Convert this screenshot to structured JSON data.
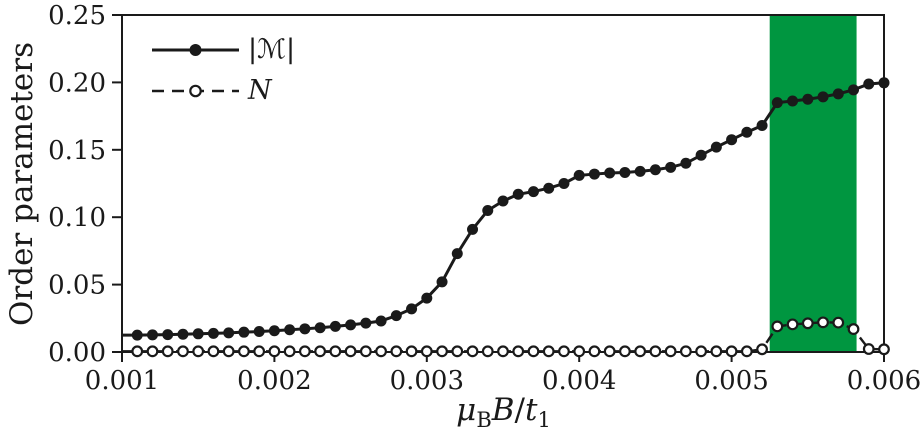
{
  "figure": {
    "background": "#ffffff",
    "ink_color": "#1a1a1a",
    "band_color": "#009640"
  },
  "labels": {
    "ylabel": "Order parameters",
    "xlabel_mu": "μ",
    "xlabel_mu_sub": "B",
    "xlabel_B": "B",
    "xlabel_slash": "/",
    "xlabel_t": "t",
    "xlabel_t_sub": "1"
  },
  "legend": {
    "items": [
      {
        "label": "|ℳ|",
        "line": "solid",
        "marker": "filled-circle"
      },
      {
        "label": "N",
        "line": "dashed",
        "marker": "open-circle"
      }
    ]
  },
  "chart_data": {
    "type": "line",
    "title": "",
    "xlabel": "mu_B B / t_1",
    "ylabel": "Order parameters",
    "xlim": [
      0.001,
      0.006
    ],
    "ylim": [
      0,
      0.25
    ],
    "grid": false,
    "legend_position": "upper-left",
    "xticks": [
      0.001,
      0.002,
      0.003,
      0.004,
      0.005,
      0.006
    ],
    "xtick_labels": [
      "0.001",
      "0.002",
      "0.003",
      "0.004",
      "0.005",
      "0.006"
    ],
    "yticks": [
      0,
      0.05,
      0.1,
      0.15,
      0.2,
      0.25
    ],
    "ytick_labels": [
      "0.00",
      "0.05",
      "0.10",
      "0.15",
      "0.20",
      "0.25"
    ],
    "highlight_band": {
      "x0": 0.00525,
      "x1": 0.00582,
      "color": "#009640"
    },
    "x": [
      0.0011,
      0.0012,
      0.0013,
      0.0014,
      0.0015,
      0.0016,
      0.0017,
      0.0018,
      0.0019,
      0.002,
      0.0021,
      0.0022,
      0.0023,
      0.0024,
      0.0025,
      0.0026,
      0.0027,
      0.0028,
      0.0029,
      0.003,
      0.0031,
      0.0032,
      0.0033,
      0.0034,
      0.0035,
      0.0036,
      0.0037,
      0.0038,
      0.0039,
      0.004,
      0.0041,
      0.0042,
      0.0043,
      0.0044,
      0.0045,
      0.0046,
      0.0047,
      0.0048,
      0.0049,
      0.005,
      0.0051,
      0.0052,
      0.0053,
      0.0054,
      0.0055,
      0.0056,
      0.0057,
      0.0058,
      0.0059,
      0.006
    ],
    "series": [
      {
        "name": "|ℳ|",
        "line": "solid",
        "marker": "filled-circle",
        "color": "#1a1a1a",
        "values": [
          0.0125,
          0.0127,
          0.0129,
          0.0132,
          0.0135,
          0.0138,
          0.0142,
          0.0147,
          0.0152,
          0.0158,
          0.0165,
          0.0172,
          0.018,
          0.019,
          0.0201,
          0.0214,
          0.023,
          0.027,
          0.032,
          0.04,
          0.052,
          0.073,
          0.091,
          0.105,
          0.112,
          0.117,
          0.119,
          0.1215,
          0.125,
          0.131,
          0.132,
          0.1328,
          0.1332,
          0.134,
          0.1352,
          0.137,
          0.14,
          0.146,
          0.152,
          0.1575,
          0.163,
          0.168,
          0.185,
          0.1862,
          0.1875,
          0.1893,
          0.1915,
          0.1945,
          0.1988,
          0.1997
        ]
      },
      {
        "name": "N",
        "line": "dashed",
        "marker": "open-circle",
        "color": "#1a1a1a",
        "values": [
          0.0005,
          0.0005,
          0.0005,
          0.0005,
          0.0005,
          0.0005,
          0.0005,
          0.0005,
          0.0005,
          0.0005,
          0.0005,
          0.0005,
          0.0005,
          0.0005,
          0.0005,
          0.0005,
          0.0005,
          0.0005,
          0.0005,
          0.0005,
          0.0005,
          0.0005,
          0.0005,
          0.0005,
          0.0005,
          0.0005,
          0.0005,
          0.0005,
          0.0005,
          0.0005,
          0.0005,
          0.0005,
          0.0005,
          0.0005,
          0.0005,
          0.0005,
          0.0005,
          0.0005,
          0.0005,
          0.0005,
          0.0005,
          0.002,
          0.019,
          0.0205,
          0.0213,
          0.022,
          0.0218,
          0.017,
          0.0022,
          0.002
        ]
      }
    ]
  }
}
